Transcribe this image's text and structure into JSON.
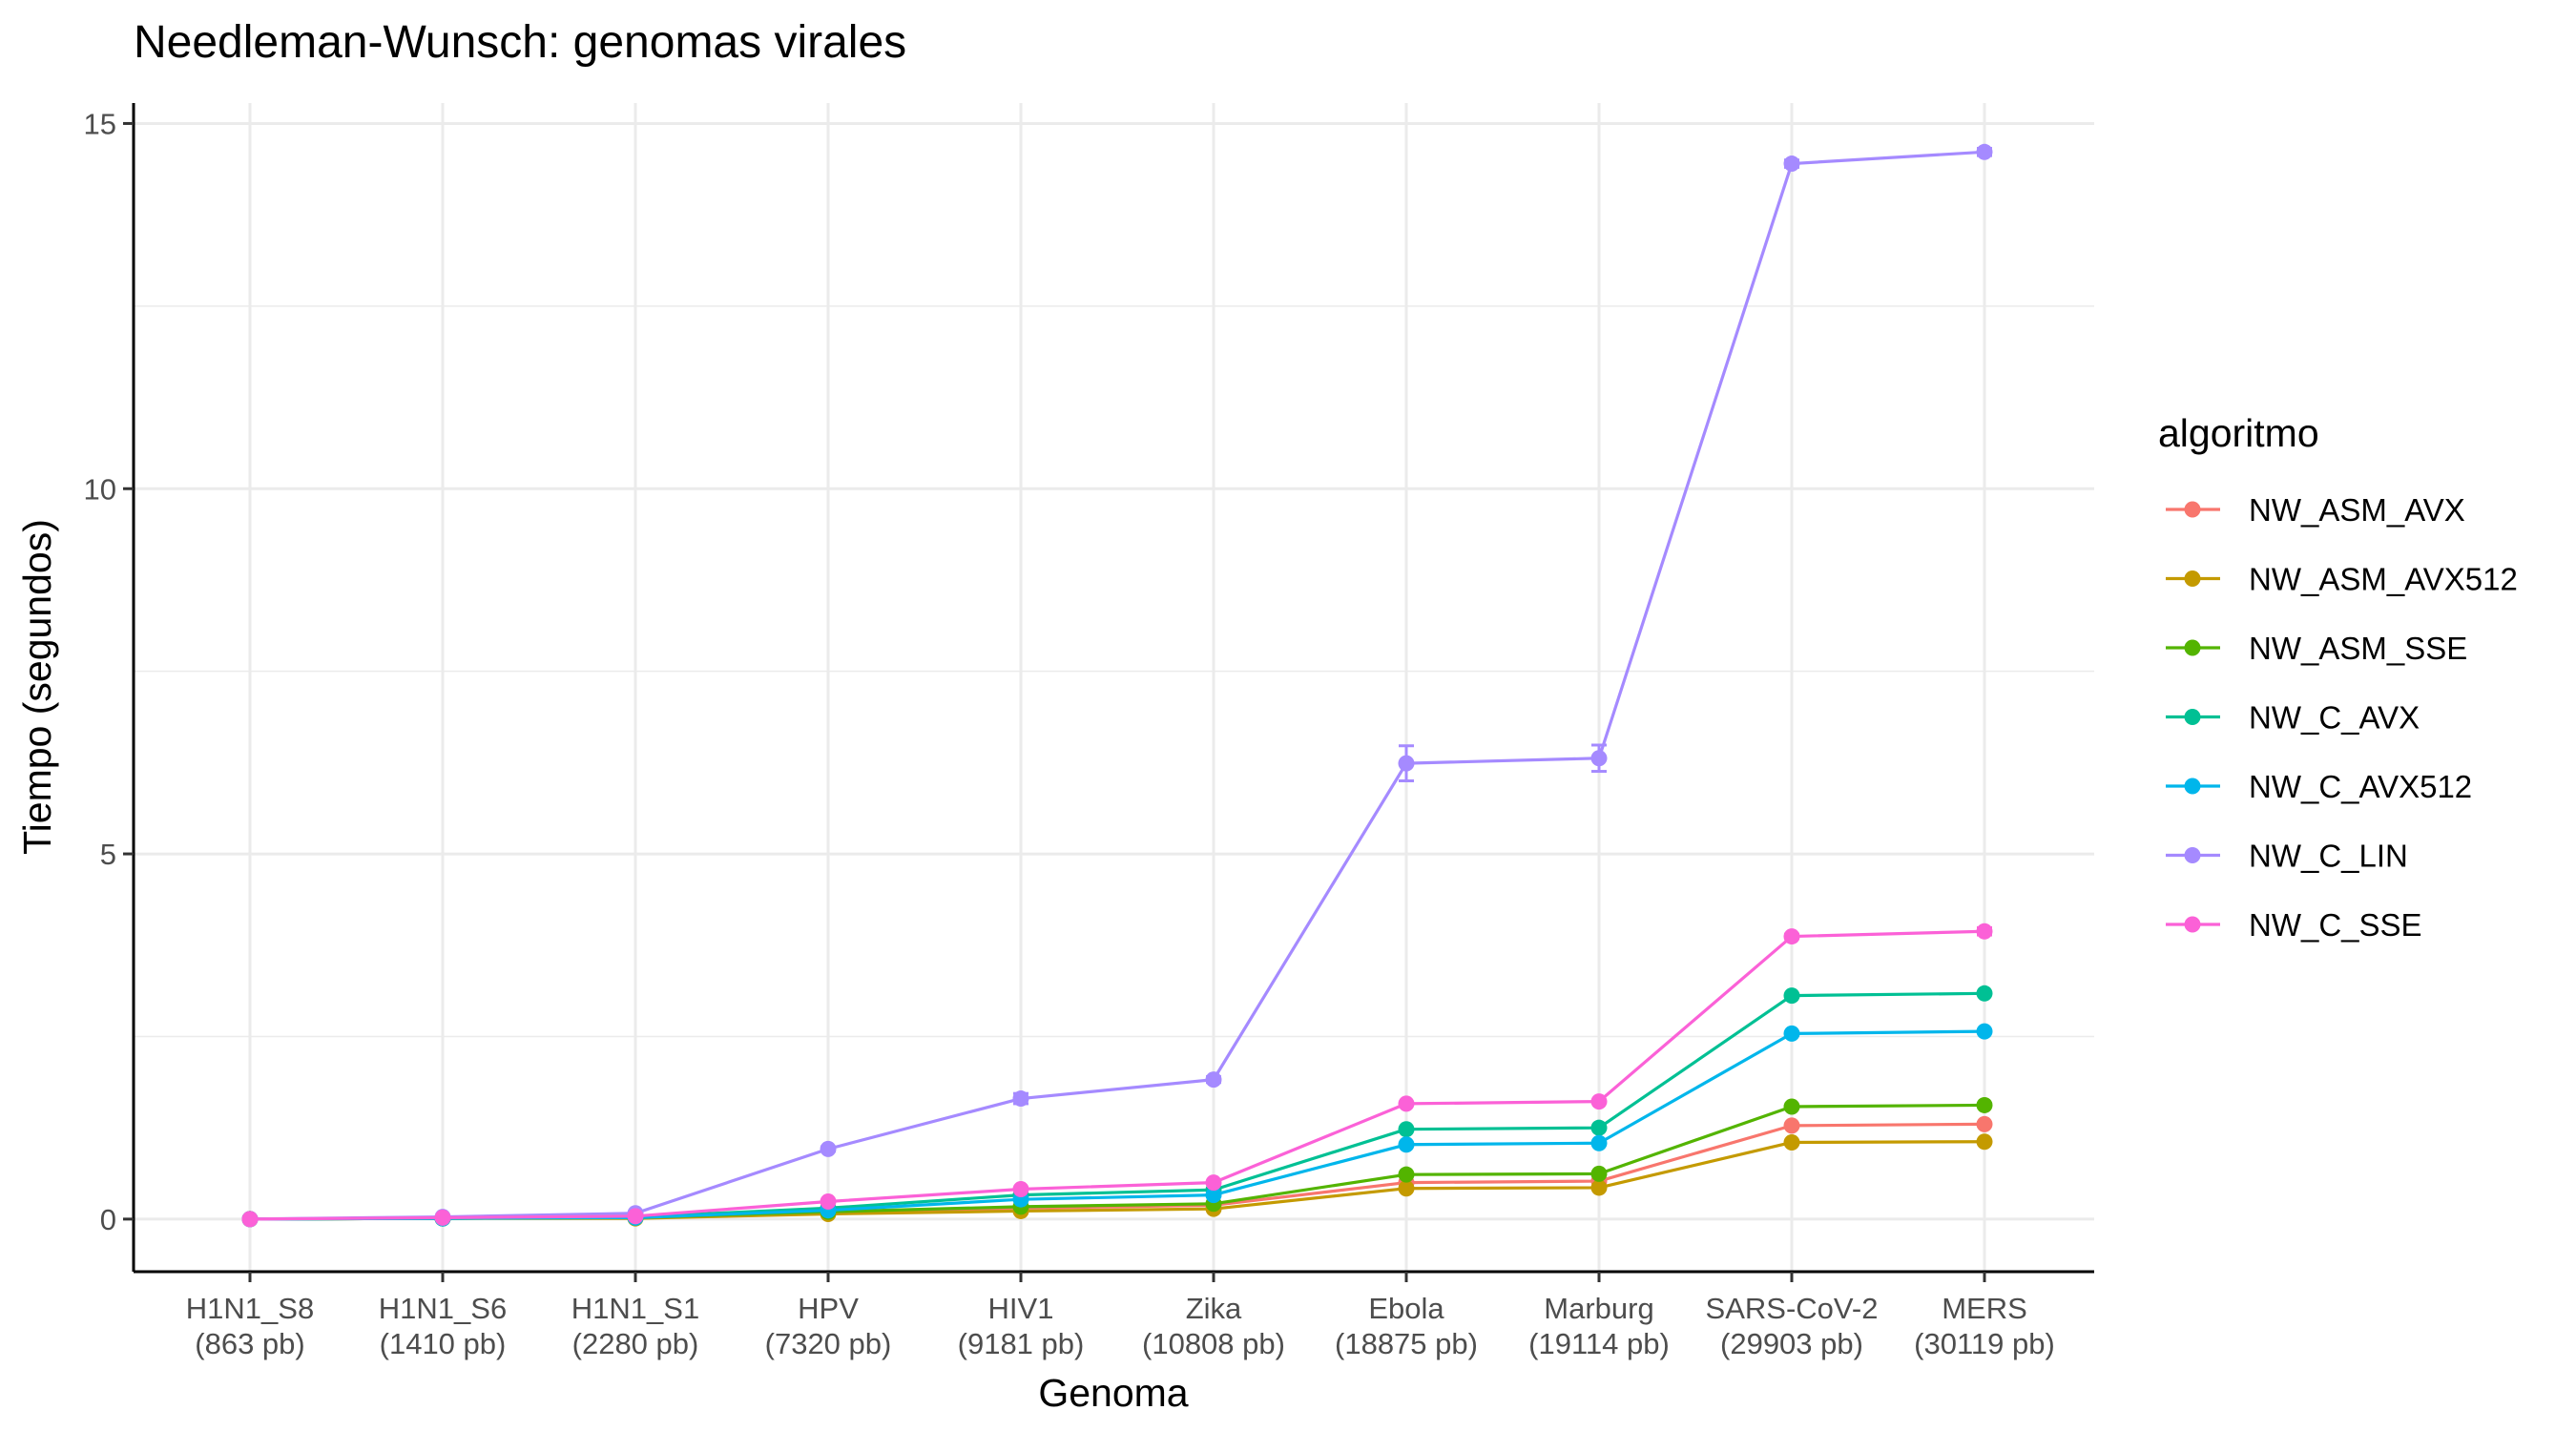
{
  "chart_data": {
    "type": "line",
    "title": "Needleman-Wunsch: genomas virales",
    "xlabel": "Genoma",
    "ylabel": "Tiempo (segundos)",
    "ylim": [
      -0.72,
      15.28
    ],
    "yticks": [
      0,
      5,
      10,
      15
    ],
    "grid": true,
    "legend_title": "algoritmo",
    "legend_position": "right",
    "categories": [
      {
        "name": "H1N1_S8",
        "size": "(863 pb)"
      },
      {
        "name": "H1N1_S6",
        "size": "(1410 pb)"
      },
      {
        "name": "H1N1_S1",
        "size": "(2280 pb)"
      },
      {
        "name": "HPV",
        "size": "(7320 pb)"
      },
      {
        "name": "HIV1",
        "size": "(9181 pb)"
      },
      {
        "name": "Zika",
        "size": "(10808 pb)"
      },
      {
        "name": "Ebola",
        "size": "(18875 pb)"
      },
      {
        "name": "Marburg",
        "size": "(19114 pb)"
      },
      {
        "name": "SARS-CoV-2",
        "size": "(29903 pb)"
      },
      {
        "name": "MERS",
        "size": "(30119 pb)"
      }
    ],
    "series": [
      {
        "name": "NW_ASM_AVX",
        "color": "#F8766D",
        "values": [
          0.0,
          0.01,
          0.02,
          0.09,
          0.15,
          0.19,
          0.5,
          0.52,
          1.28,
          1.3
        ]
      },
      {
        "name": "NW_ASM_AVX512",
        "color": "#C49A00",
        "values": [
          0.0,
          0.01,
          0.01,
          0.07,
          0.11,
          0.14,
          0.42,
          0.43,
          1.05,
          1.06
        ]
      },
      {
        "name": "NW_ASM_SSE",
        "color": "#53B400",
        "values": [
          0.0,
          0.01,
          0.02,
          0.1,
          0.17,
          0.21,
          0.61,
          0.62,
          1.54,
          1.56
        ]
      },
      {
        "name": "NW_C_AVX",
        "color": "#00C094",
        "values": [
          0.0,
          0.01,
          0.03,
          0.15,
          0.33,
          0.4,
          1.23,
          1.25,
          3.06,
          3.09
        ]
      },
      {
        "name": "NW_C_AVX512",
        "color": "#00B6EB",
        "values": [
          0.0,
          0.01,
          0.02,
          0.12,
          0.27,
          0.33,
          1.02,
          1.04,
          2.54,
          2.57
        ]
      },
      {
        "name": "NW_C_LIN",
        "color": "#A58AFF",
        "values": [
          0.0,
          0.03,
          0.08,
          0.96,
          1.65,
          1.91,
          6.24,
          6.31,
          14.45,
          14.61
        ],
        "errors": [
          0,
          0,
          0,
          0.03,
          0.07,
          0.04,
          0.24,
          0.18,
          0.05,
          0.05
        ]
      },
      {
        "name": "NW_C_SSE",
        "color": "#FB61D7",
        "values": [
          0.0,
          0.02,
          0.04,
          0.24,
          0.41,
          0.5,
          1.58,
          1.61,
          3.87,
          3.94
        ],
        "errors": [
          0,
          0,
          0,
          0,
          0,
          0,
          0,
          0,
          0.03,
          0.05
        ]
      }
    ]
  }
}
